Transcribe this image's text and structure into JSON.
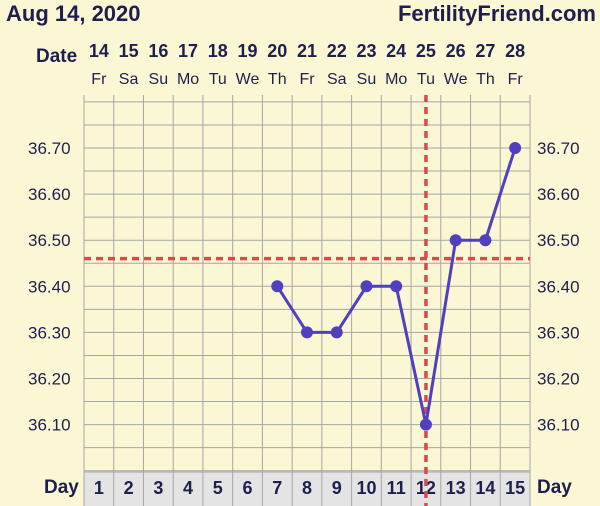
{
  "header": {
    "date": "Aug 14, 2020",
    "brand": "FertilityFriend.com"
  },
  "chart_data": {
    "type": "line",
    "date_label": "Date",
    "day_label": "Day",
    "dates": [
      "14",
      "15",
      "16",
      "17",
      "18",
      "19",
      "20",
      "21",
      "22",
      "23",
      "24",
      "25",
      "26",
      "27",
      "28"
    ],
    "weekdays": [
      "Fr",
      "Sa",
      "Su",
      "Mo",
      "Tu",
      "We",
      "Th",
      "Fr",
      "Sa",
      "Su",
      "Mo",
      "Tu",
      "We",
      "Th",
      "Fr"
    ],
    "days": [
      "1",
      "2",
      "3",
      "4",
      "5",
      "6",
      "7",
      "8",
      "9",
      "10",
      "11",
      "12",
      "13",
      "14",
      "15"
    ],
    "y_ticks": [
      "36.70",
      "36.60",
      "36.50",
      "36.40",
      "36.30",
      "36.20",
      "36.10"
    ],
    "ylim": [
      36.0,
      36.82
    ],
    "series": [
      {
        "values": [
          null,
          null,
          null,
          null,
          null,
          null,
          36.4,
          36.3,
          36.3,
          36.4,
          36.4,
          36.1,
          36.5,
          36.5,
          36.7
        ],
        "color": "#5040c0"
      }
    ],
    "coverline": 36.46,
    "ovulation_day": 12,
    "coverline_color": "#d94a4a",
    "grid": true
  }
}
